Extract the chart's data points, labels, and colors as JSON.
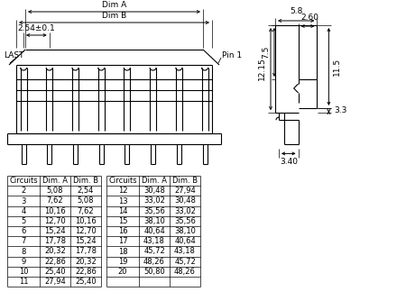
{
  "bg_color": "#ffffff",
  "line_color": "#000000",
  "table1": {
    "headers": [
      "Circuits",
      "Dim. A",
      "Dim. B"
    ],
    "rows": [
      [
        "2",
        "5,08",
        "2,54"
      ],
      [
        "3",
        "7,62",
        "5,08"
      ],
      [
        "4",
        "10,16",
        "7,62"
      ],
      [
        "5",
        "12,70",
        "10,16"
      ],
      [
        "6",
        "15,24",
        "12,70"
      ],
      [
        "7",
        "17,78",
        "15,24"
      ],
      [
        "8",
        "20,32",
        "17,78"
      ],
      [
        "9",
        "22,86",
        "20,32"
      ],
      [
        "10",
        "25,40",
        "22,86"
      ],
      [
        "11",
        "27,94",
        "25,40"
      ]
    ]
  },
  "table2": {
    "headers": [
      "Circuits",
      "Dim. A",
      "Dim. B"
    ],
    "rows": [
      [
        "12",
        "30,48",
        "27,94"
      ],
      [
        "13",
        "33,02",
        "30,48"
      ],
      [
        "14",
        "35,56",
        "33,02"
      ],
      [
        "15",
        "38,10",
        "35,56"
      ],
      [
        "16",
        "40,64",
        "38,10"
      ],
      [
        "17",
        "43,18",
        "40,64"
      ],
      [
        "18",
        "45,72",
        "43,18"
      ],
      [
        "19",
        "48,26",
        "45,72"
      ],
      [
        "20",
        "50,80",
        "48,26"
      ],
      [
        "",
        "",
        ""
      ]
    ]
  },
  "dims_left": {
    "dim_a_label": "Dim A",
    "dim_b_label": "Dim B",
    "pitch_label": "2.54±0.1",
    "last_label": "LAST",
    "pin1_label": "Pin 1"
  },
  "dims_right": {
    "d1": "5.8",
    "d2": "2.60",
    "d3": "12.15",
    "d4": "7.5",
    "d5": "11.5",
    "d6": "3.3",
    "d7": "3.40"
  }
}
